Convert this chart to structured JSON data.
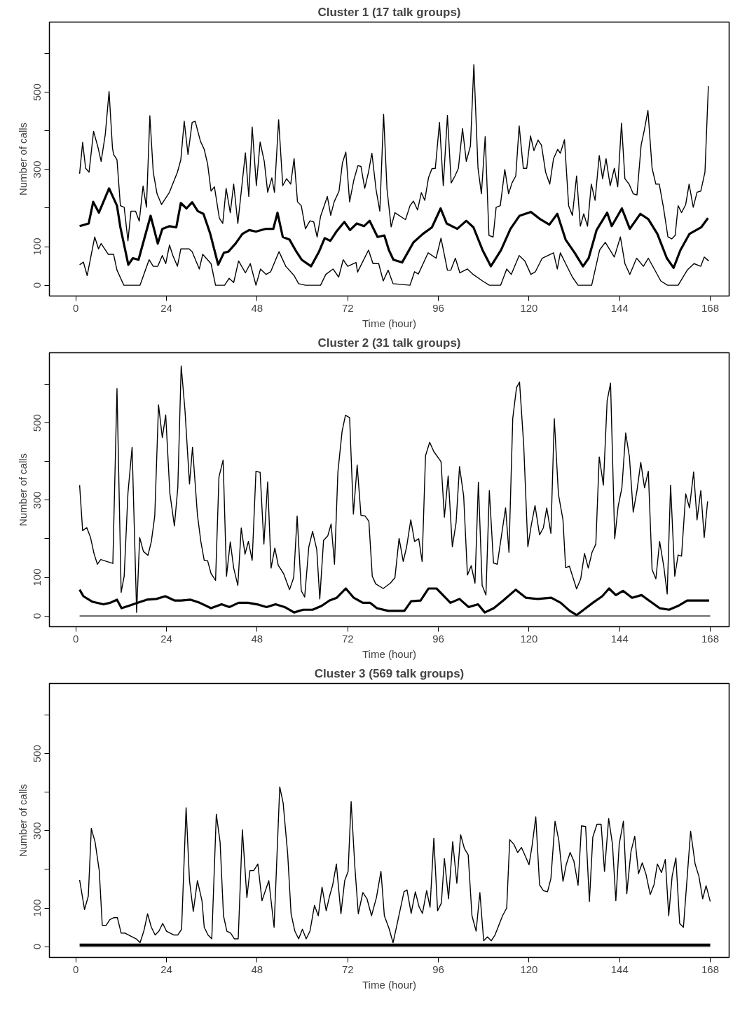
{
  "chart_data": [
    {
      "type": "line",
      "title": "Cluster 1 (17 talk groups)",
      "xlabel": "Time (hour)",
      "ylabel": "Number of calls",
      "xlim": [
        -7,
        173
      ],
      "ylim": [
        -28,
        682
      ],
      "xticks": [
        0,
        24,
        48,
        72,
        96,
        120,
        144,
        168
      ],
      "yticks": [
        0,
        100,
        {
          "value": 200,
          "label": null
        },
        300,
        {
          "value": 400,
          "label": null
        },
        500,
        {
          "value": 600,
          "label": null
        }
      ],
      "series": [
        {
          "color": "#000000",
          "x": [
            1,
            1.8,
            2.6,
            3.5,
            4.7,
            5.9,
            6.7,
            7.8,
            8.8,
            9.7,
            10,
            10.9,
            11.8,
            12.8,
            13.8,
            14.6,
            15.8,
            16.8,
            17.8,
            18.7,
            19.6,
            20.5,
            21.5,
            22.7,
            24.8,
            26.9,
            27.8,
            28.7,
            29.7,
            30.8,
            31.6,
            33,
            34,
            34.9,
            35.8,
            36.7,
            38,
            38.9,
            39.8,
            40.9,
            41.8,
            42.9,
            44.9,
            45.8,
            46.7,
            47.8,
            48.8,
            49.9,
            50.8,
            51.9,
            52.6,
            53.7,
            54.8,
            55.8,
            56.9,
            57.8,
            58.7,
            59.7,
            60.8,
            62,
            63,
            63.9,
            64.8,
            66.6,
            67.5,
            68.4,
            69.7,
            70.6,
            71.5,
            72.5,
            73.6,
            74.7,
            75.5,
            76.5,
            77.5,
            78.4,
            79.5,
            80.5,
            81.5,
            82.4,
            83.5,
            84.5,
            87.3,
            88.5,
            89.4,
            90.5,
            91.5,
            92.4,
            93.4,
            94.3,
            95.2,
            96.3,
            97.3,
            98.4,
            99.4,
            100.4,
            101.3,
            102.4,
            103.4,
            104.5,
            105.4,
            106.5,
            107.4,
            108.4,
            109.4,
            110.5,
            111.3,
            112.4,
            113.6,
            114.6,
            115.5,
            116.5,
            117.4,
            118.5,
            119.4,
            120.4,
            121.3,
            122.4,
            123.3,
            124.4,
            125.5,
            126.5,
            127.6,
            128.3,
            129.4,
            130.5,
            131.5,
            132.6,
            133.6,
            134.5,
            135.5,
            136.5,
            137.5,
            138.6,
            139.5,
            140.4,
            141.5,
            142.6,
            143.5,
            144.5,
            145.4,
            146.5,
            147.6,
            148.6,
            149.7,
            150.6,
            151.5,
            152.6,
            153.6,
            154.5,
            155.6,
            156.8,
            157.8,
            158.7,
            159.5,
            160.4,
            161.5,
            162.4,
            163.5,
            164.5,
            165.5,
            166.6,
            167.5
          ],
          "values": [
            289,
            370,
            303,
            293,
            399,
            356,
            321,
            391,
            502,
            356,
            339,
            325,
            206,
            202,
            115,
            192,
            192,
            166,
            257,
            202,
            439,
            293,
            237,
            209,
            241,
            293,
            325,
            425,
            339,
            422,
            425,
            373,
            352,
            314,
            244,
            255,
            174,
            160,
            251,
            188,
            262,
            160,
            343,
            230,
            410,
            258,
            371,
            321,
            241,
            278,
            241,
            429,
            258,
            276,
            262,
            328,
            216,
            206,
            146,
            167,
            164,
            125,
            178,
            230,
            181,
            216,
            244,
            317,
            345,
            216,
            272,
            310,
            308,
            251,
            293,
            342,
            248,
            192,
            443,
            249,
            151,
            188,
            170,
            206,
            218,
            195,
            240,
            220,
            279,
            302,
            303,
            422,
            258,
            440,
            265,
            283,
            303,
            406,
            321,
            361,
            572,
            303,
            237,
            385,
            129,
            125,
            202,
            206,
            300,
            237,
            265,
            283,
            413,
            303,
            303,
            387,
            349,
            376,
            363,
            293,
            262,
            328,
            352,
            342,
            377,
            206,
            181,
            283,
            153,
            185,
            153,
            262,
            220,
            336,
            276,
            328,
            258,
            303,
            255,
            420,
            276,
            262,
            237,
            234,
            363,
            405,
            453,
            303,
            262,
            262,
            202,
            125,
            120,
            129,
            206,
            188,
            209,
            262,
            202,
            241,
            244,
            293,
            516
          ]
        },
        {
          "color": "#000000",
          "x": [
            1,
            3.4,
            4.6,
            6.1,
            8.8,
            10.9,
            11.8,
            13.9,
            15.1,
            16.6,
            19.8,
            21.7,
            22.9,
            24.8,
            26.6,
            27.8,
            29.3,
            30.8,
            32.3,
            33.8,
            35.6,
            37.7,
            39.2,
            40.4,
            42.3,
            44.1,
            45.9,
            47.7,
            50.2,
            52.3,
            53.4,
            54.8,
            56.6,
            58.4,
            59.8,
            62.3,
            64.4,
            65.9,
            67.4,
            69,
            71.1,
            72.6,
            74.4,
            76.3,
            77.8,
            79.9,
            81.7,
            82.9,
            84.1,
            86.4,
            89.4,
            91.9,
            94.3,
            96.6,
            98.2,
            101,
            103.4,
            105.3,
            107.7,
            109.9,
            112.6,
            115.1,
            117.5,
            120.5,
            123,
            125.4,
            127.5,
            129.7,
            132.1,
            134.3,
            135.8,
            137.9,
            140.7,
            141.9,
            144.6,
            146.7,
            149.5,
            151.6,
            154,
            156.5,
            158.3,
            160.1,
            162.5,
            165.6,
            167.4
          ],
          "values": [
            153,
            160,
            216,
            188,
            251,
            206,
            150,
            53,
            70,
            66,
            180,
            108,
            146,
            153,
            150,
            213,
            199,
            215,
            192,
            185,
            133,
            53,
            84,
            87,
            108,
            133,
            143,
            139,
            146,
            146,
            188,
            125,
            118,
            87,
            66,
            49,
            87,
            122,
            115,
            139,
            164,
            143,
            160,
            153,
            167,
            125,
            129,
            91,
            66,
            59,
            111,
            133,
            150,
            199,
            160,
            146,
            167,
            150,
            91,
            49,
            91,
            146,
            180,
            190,
            171,
            157,
            185,
            118,
            84,
            49,
            70,
            143,
            188,
            153,
            199,
            146,
            185,
            171,
            133,
            70,
            45,
            91,
            133,
            150,
            174
          ]
        },
        {
          "color": "#000000",
          "x": [
            1,
            2,
            3,
            5,
            6,
            6.7,
            8.6,
            10,
            10.9,
            12.7,
            17,
            19.4,
            20.5,
            21.7,
            22.9,
            23.8,
            24.8,
            25.7,
            26.9,
            27.8,
            30,
            30.8,
            32.7,
            33.6,
            35.8,
            37,
            39.4,
            40.6,
            41.8,
            43.1,
            44.9,
            46.2,
            47.7,
            48.9,
            50.4,
            51.6,
            53.8,
            55.6,
            57.8,
            59,
            60.8,
            64.8,
            66.2,
            68.1,
            69.6,
            70.8,
            72,
            74.2,
            74.6,
            77.5,
            78.7,
            80.2,
            81.4,
            82.7,
            84,
            88.5,
            89.7,
            90.7,
            93.3,
            95.4,
            96.7,
            98.4,
            99.3,
            100.5,
            101.7,
            103.7,
            105.2,
            107.7,
            109.5,
            112.5,
            114.1,
            115.3,
            117.4,
            118.9,
            120.5,
            121.7,
            123.5,
            126.5,
            127.5,
            128.3,
            129.7,
            131.5,
            133,
            136.6,
            138.7,
            140.2,
            142.6,
            144.2,
            145.4,
            146.7,
            148.5,
            150.3,
            151.6,
            154.9,
            156.7,
            159.5,
            161.9,
            163.7,
            165.5,
            166.4,
            167.6
          ],
          "values": [
            53,
            60,
            25,
            125,
            94,
            108,
            80,
            80,
            39,
            0,
            0,
            66,
            49,
            49,
            77,
            56,
            104,
            77,
            49,
            94,
            94,
            87,
            42,
            80,
            56,
            0,
            0,
            18,
            7,
            63,
            32,
            56,
            0,
            42,
            28,
            35,
            87,
            49,
            25,
            4,
            0,
            0,
            28,
            42,
            21,
            66,
            49,
            59,
            34,
            91,
            56,
            56,
            11,
            39,
            4,
            0,
            35,
            29,
            84,
            70,
            122,
            39,
            39,
            70,
            32,
            42,
            28,
            11,
            0,
            0,
            42,
            28,
            77,
            63,
            28,
            35,
            70,
            84,
            42,
            84,
            56,
            21,
            0,
            0,
            91,
            111,
            73,
            125,
            56,
            28,
            70,
            49,
            70,
            11,
            0,
            0,
            39,
            56,
            49,
            73,
            63
          ]
        }
      ]
    },
    {
      "type": "line",
      "title": "Cluster 2 (31 talk groups)",
      "xlabel": "Time (hour)",
      "ylabel": "Number of calls",
      "xlim": [
        -7,
        173
      ],
      "ylim": [
        -28,
        682
      ],
      "xticks": [
        0,
        24,
        48,
        72,
        96,
        120,
        144,
        168
      ],
      "yticks": [
        0,
        100,
        {
          "value": 200,
          "label": null
        },
        300,
        {
          "value": 400,
          "label": null
        },
        500,
        {
          "value": 600,
          "label": null
        }
      ],
      "series": [
        {
          "color": "#000000",
          "x": [
            1,
            1.8,
            2.9,
            3.9,
            4.8,
            5.7,
            6.6,
            9.8,
            10.9,
            12,
            12.8,
            13.8,
            14.9,
            16.1,
            16.9,
            17.9,
            19.1,
            20,
            20.9,
            21.9,
            22.9,
            23.8,
            24.9,
            26.1,
            27,
            27.9,
            28.9,
            30.1,
            30.9,
            32.2,
            33.1,
            34,
            34.9,
            35.8,
            37,
            37.9,
            39,
            39.9,
            40.9,
            41.8,
            42.9,
            43.8,
            44.8,
            45.7,
            46.7,
            47.7,
            48.8,
            49.8,
            50.8,
            51.7,
            52.7,
            53.6,
            55,
            56.6,
            57.7,
            58.6,
            59.7,
            60.6,
            61.7,
            62.7,
            63.8,
            64.6,
            65.6,
            66.7,
            67.6,
            68.5,
            69.4,
            70.5,
            71.4,
            72.5,
            73.5,
            74.5,
            75.5,
            76.6,
            77.6,
            78.5,
            79.4,
            81.4,
            83.3,
            84.5,
            85.6,
            86.7,
            87.6,
            88.7,
            89.7,
            90.8,
            91.7,
            92.6,
            93.7,
            94.8,
            96.7,
            97.6,
            98.6,
            99.7,
            100.7,
            101.6,
            102.7,
            103.7,
            104.7,
            105.7,
            106.6,
            107.6,
            108.6,
            109.5,
            110.6,
            111.6,
            112.7,
            113.8,
            114.7,
            115.7,
            116.7,
            117.5,
            118.6,
            119.7,
            120.6,
            121.6,
            122.8,
            123.8,
            124.7,
            125.8,
            126.7,
            127.8,
            129,
            129.7,
            130.7,
            132.6,
            133.7,
            134.7,
            135.7,
            136.7,
            137.7,
            138.6,
            139.7,
            140.7,
            141.6,
            142.7,
            143.6,
            144.6,
            145.6,
            146.6,
            147.6,
            148.6,
            149.6,
            150.6,
            151.6,
            152.6,
            153.6,
            154.6,
            155.7,
            156.6,
            157.5,
            158.6,
            159.5,
            160.4,
            161.5,
            162.5,
            163.6,
            164.5,
            165.5,
            166.4,
            167.3
          ],
          "values": [
            339,
            221,
            229,
            203,
            162,
            134,
            146,
            136,
            589,
            61,
            103,
            318,
            437,
            9,
            203,
            167,
            157,
            193,
            259,
            547,
            462,
            521,
            318,
            233,
            332,
            648,
            533,
            342,
            437,
            262,
            193,
            144,
            143,
            110,
            92,
            360,
            404,
            103,
            192,
            124,
            79,
            228,
            160,
            193,
            144,
            375,
            372,
            186,
            347,
            124,
            176,
            131,
            110,
            68,
            100,
            259,
            65,
            49,
            179,
            219,
            172,
            44,
            196,
            207,
            238,
            134,
            373,
            478,
            520,
            514,
            264,
            391,
            261,
            259,
            245,
            103,
            83,
            71,
            85,
            99,
            201,
            141,
            179,
            249,
            193,
            200,
            141,
            415,
            450,
            426,
            400,
            256,
            363,
            179,
            242,
            387,
            311,
            106,
            130,
            85,
            346,
            79,
            54,
            325,
            137,
            134,
            207,
            280,
            165,
            512,
            592,
            606,
            443,
            179,
            235,
            286,
            210,
            228,
            280,
            214,
            511,
            315,
            249,
            125,
            129,
            70,
            96,
            162,
            124,
            165,
            186,
            412,
            339,
            558,
            603,
            200,
            283,
            332,
            474,
            412,
            269,
            325,
            398,
            332,
            375,
            120,
            96,
            193,
            128,
            57,
            339,
            103,
            158,
            155,
            316,
            280,
            373,
            249,
            325,
            203,
            297
          ]
        },
        {
          "color": "#000000",
          "x": [
            1,
            2,
            4.3,
            7.3,
            9.1,
            10.9,
            12.1,
            14,
            16.4,
            18.8,
            21.3,
            23.7,
            26.1,
            27.9,
            30.4,
            32.8,
            35.8,
            38.6,
            40.7,
            43.1,
            45.6,
            48,
            50.5,
            52.9,
            55.3,
            57.8,
            60.2,
            62.7,
            65.1,
            67.2,
            69.1,
            71.5,
            73.6,
            76,
            77.9,
            79.7,
            82.7,
            87,
            88.8,
            91.3,
            93.4,
            95.5,
            99.2,
            101.6,
            104,
            106.5,
            108.3,
            110.7,
            113.2,
            116.5,
            119.2,
            122.3,
            125.9,
            128.4,
            130.8,
            132.6,
            134.5,
            136.9,
            139.4,
            141.2,
            143,
            144.9,
            147.3,
            149.8,
            152.2,
            154.6,
            157.1,
            159.5,
            161.9,
            164.4,
            167.7
          ],
          "values": [
            68,
            51,
            37,
            30,
            34,
            42,
            20,
            26,
            34,
            42,
            44,
            51,
            40,
            40,
            42,
            34,
            20,
            30,
            23,
            34,
            34,
            30,
            23,
            30,
            23,
            9,
            16,
            16,
            26,
            40,
            47,
            71,
            47,
            34,
            34,
            20,
            13,
            13,
            38,
            40,
            71,
            71,
            34,
            44,
            23,
            30,
            9,
            20,
            40,
            68,
            47,
            44,
            47,
            34,
            13,
            2,
            16,
            34,
            51,
            71,
            54,
            65,
            47,
            54,
            37,
            20,
            16,
            26,
            40,
            40,
            40
          ]
        },
        {
          "color": "#000000",
          "x": [
            1,
            168
          ],
          "values": [
            0,
            0
          ]
        }
      ]
    },
    {
      "type": "line",
      "title": "Cluster 3 (569 talk groups)",
      "xlabel": "Time (hour)",
      "ylabel": "Number of calls",
      "xlim": [
        -7,
        173
      ],
      "ylim": [
        -28,
        682
      ],
      "xticks": [
        0,
        24,
        48,
        72,
        96,
        120,
        144,
        168
      ],
      "yticks": [
        0,
        100,
        {
          "value": 200,
          "label": null
        },
        300,
        {
          "value": 400,
          "label": null
        },
        500,
        {
          "value": 600,
          "label": null
        }
      ],
      "series": [
        {
          "color": "#000000",
          "x": [
            1,
            2.3,
            3.3,
            4.1,
            5.1,
            6.2,
            7,
            8,
            9,
            10,
            11,
            12,
            13,
            14,
            15,
            16,
            17,
            18,
            19,
            20,
            21,
            22,
            23,
            24,
            25,
            26,
            27,
            28,
            29.2,
            30.1,
            31.1,
            32.2,
            33.4,
            34,
            35,
            36,
            37.2,
            38.2,
            39.1,
            40,
            41,
            42,
            43,
            44.1,
            45.3,
            46.1,
            47.1,
            48.2,
            49.3,
            51.1,
            52.5,
            54,
            54.9,
            56.1,
            57,
            58,
            59,
            60,
            61,
            62,
            63.2,
            64.2,
            65.2,
            66.3,
            67.2,
            68,
            69,
            70.2,
            71.2,
            72.1,
            72.9,
            73.9,
            74.8,
            76,
            77.1,
            78.3,
            79.6,
            80.8,
            81.7,
            83,
            84,
            85,
            86.9,
            87.7,
            88.8,
            89.9,
            90.9,
            91.8,
            92.9,
            93.8,
            94.8,
            95.8,
            96.8,
            97.6,
            98.7,
            99.8,
            100.9,
            101.9,
            102.9,
            103.9,
            104.9,
            106,
            107,
            108,
            109,
            110,
            111,
            112,
            113,
            114.1,
            114.9,
            116,
            117,
            118,
            119.1,
            120,
            120.8,
            121.8,
            122.8,
            123.8,
            124.9,
            125.8,
            126.9,
            127.9,
            129,
            129.9,
            130.9,
            131.9,
            133,
            133.9,
            135,
            136,
            136.9,
            138,
            139.1,
            140,
            141.1,
            142.1,
            143,
            143.9,
            145,
            145.9,
            147,
            148,
            149,
            150,
            151,
            152.1,
            153.1,
            154,
            155.1,
            156.1,
            157,
            157.9,
            158.9,
            159.9,
            160.9,
            162.8,
            164,
            165,
            166,
            166.9,
            168
          ],
          "values": [
            173,
            96,
            131,
            306,
            271,
            197,
            55,
            55,
            70,
            75,
            75,
            35,
            35,
            30,
            25,
            20,
            10,
            40,
            85,
            50,
            30,
            40,
            60,
            40,
            35,
            30,
            30,
            45,
            360,
            171,
            91,
            171,
            119,
            50,
            30,
            20,
            343,
            271,
            80,
            40,
            35,
            20,
            20,
            303,
            127,
            197,
            197,
            214,
            119,
            171,
            50,
            414,
            372,
            240,
            85,
            40,
            20,
            45,
            20,
            40,
            107,
            80,
            154,
            93,
            131,
            159,
            214,
            85,
            171,
            195,
            376,
            205,
            85,
            140,
            124,
            80,
            127,
            195,
            80,
            45,
            10,
            55,
            142,
            147,
            86,
            142,
            103,
            86,
            145,
            102,
            281,
            93,
            113,
            228,
            124,
            272,
            164,
            290,
            254,
            238,
            80,
            40,
            140,
            15,
            25,
            15,
            30,
            55,
            80,
            100,
            277,
            265,
            244,
            257,
            233,
            212,
            260,
            336,
            160,
            145,
            142,
            176,
            325,
            275,
            169,
            214,
            244,
            221,
            159,
            313,
            311,
            117,
            284,
            317,
            317,
            195,
            332,
            266,
            119,
            266,
            325,
            137,
            246,
            286,
            189,
            217,
            187,
            135,
            160,
            214,
            192,
            226,
            80,
            182,
            230,
            60,
            50,
            299,
            214,
            182,
            124,
            158,
            117
          ]
        },
        {
          "color": "#000000",
          "x": [
            1,
            168
          ],
          "values": [
            5,
            5
          ]
        },
        {
          "color": "#000000",
          "x": [
            1,
            168
          ],
          "values": [
            0,
            0
          ]
        }
      ]
    }
  ]
}
